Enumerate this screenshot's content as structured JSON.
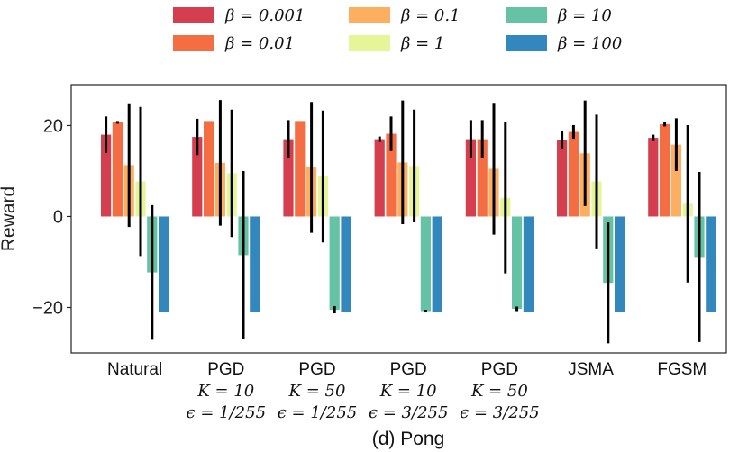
{
  "chart_data": {
    "type": "bar",
    "title": "",
    "caption": "(d) Pong",
    "xlabel": "",
    "ylabel": "Reward",
    "ylim": [
      -30,
      29
    ],
    "yticks": [
      -20,
      0,
      20
    ],
    "ytick_labels": [
      "−20",
      "0",
      "20"
    ],
    "grid": false,
    "legend_position": "top",
    "categories": [
      {
        "lines": [
          "Natural"
        ]
      },
      {
        "lines": [
          "PGD",
          "K = 10",
          "ϵ = 1/255"
        ]
      },
      {
        "lines": [
          "PGD",
          "K = 50",
          "ϵ = 1/255"
        ]
      },
      {
        "lines": [
          "PGD",
          "K = 10",
          "ϵ = 3/255"
        ]
      },
      {
        "lines": [
          "PGD",
          "K = 50",
          "ϵ = 3/255"
        ]
      },
      {
        "lines": [
          "JSMA"
        ]
      },
      {
        "lines": [
          "FGSM"
        ]
      }
    ],
    "series": [
      {
        "name": "β = 0.001",
        "color": "#d53e4f",
        "values": [
          18,
          17.5,
          17,
          17,
          17,
          16.8,
          17.3
        ],
        "errors": [
          4,
          4,
          4.2,
          0.6,
          4.2,
          2,
          0.7
        ]
      },
      {
        "name": "β = 0.01",
        "color": "#f46d43",
        "values": [
          20.7,
          21,
          21,
          18.2,
          17,
          18.6,
          20.3
        ],
        "errors": [
          0.3,
          0,
          0,
          3.8,
          4.2,
          1.5,
          0.5
        ]
      },
      {
        "name": "β = 0.1",
        "color": "#fdae61",
        "values": [
          11.3,
          11.8,
          10.8,
          11.9,
          10.5,
          13.9,
          15.8
        ],
        "errors": [
          13.6,
          13.8,
          14.4,
          13.6,
          14.5,
          11.6,
          5.8
        ]
      },
      {
        "name": "β = 1",
        "color": "#e6f598",
        "values": [
          7.7,
          9.5,
          8.8,
          11.1,
          4.1,
          7.7,
          2.8
        ],
        "errors": [
          16.4,
          14,
          14.5,
          12.4,
          16.6,
          14.7,
          17.3
        ]
      },
      {
        "name": "β = 10",
        "color": "#66c2a5",
        "values": [
          -12.3,
          -8.5,
          -20.5,
          -20.8,
          -20.3,
          -14.6,
          -8.9
        ],
        "errors": [
          14.8,
          18.5,
          0.8,
          0.3,
          0.5,
          13.3,
          18.7
        ]
      },
      {
        "name": "β = 100",
        "color": "#3288bd",
        "values": [
          -21,
          -21,
          -21,
          -21,
          -21,
          -21,
          -21
        ],
        "errors": [
          0,
          0,
          0,
          0,
          0,
          0,
          0
        ]
      }
    ]
  }
}
